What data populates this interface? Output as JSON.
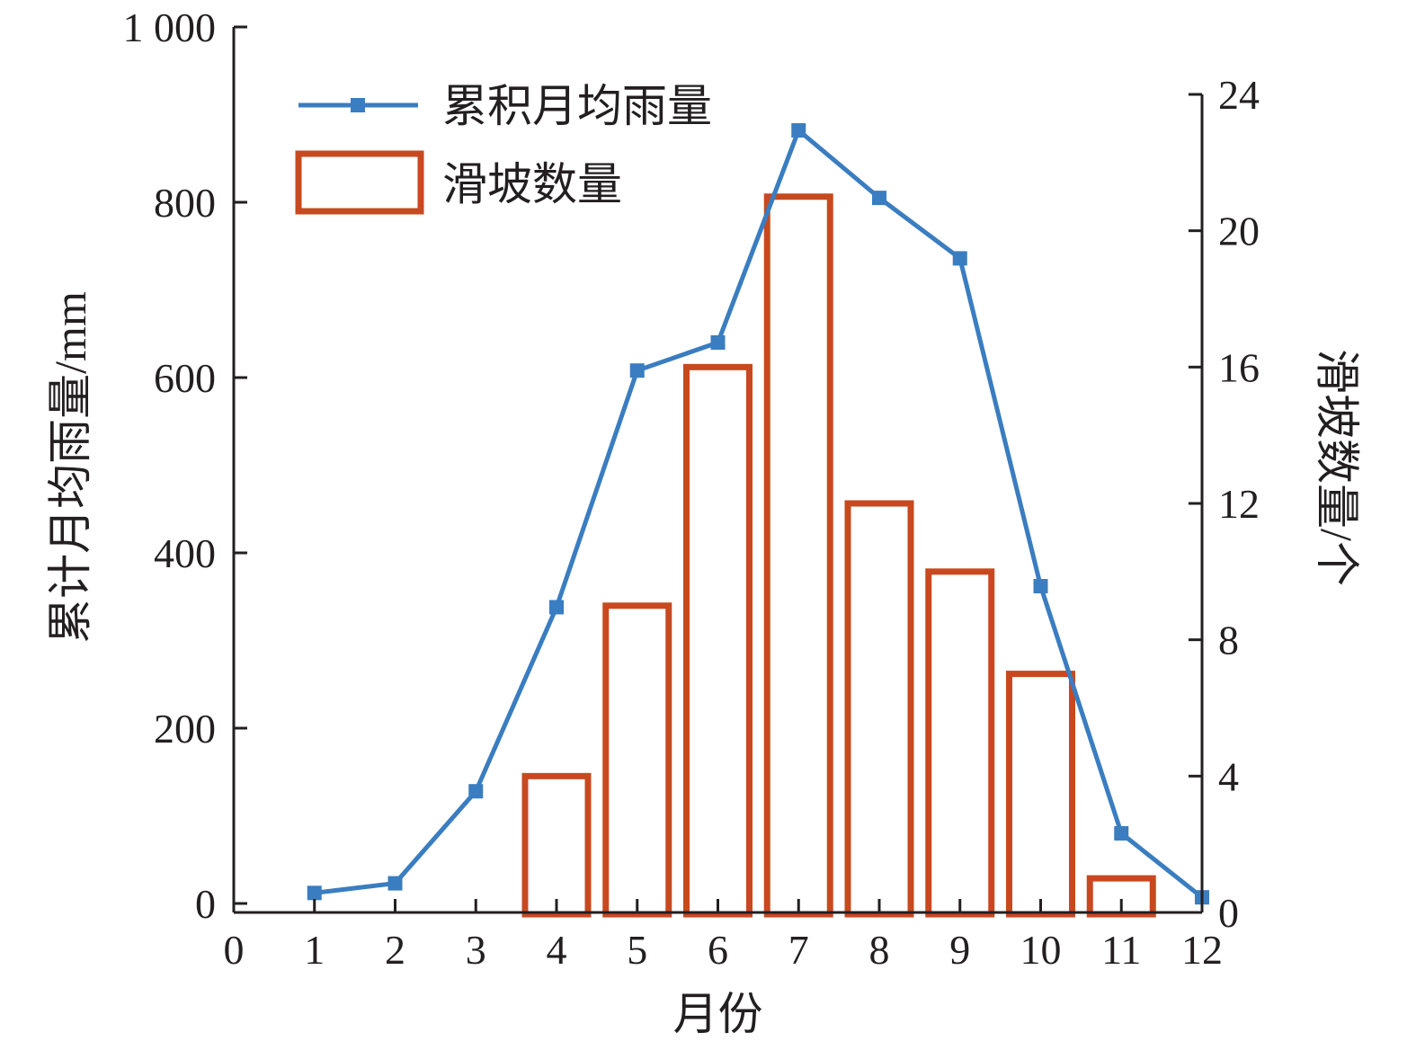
{
  "chart_data": {
    "type": "bar",
    "x": [
      1,
      2,
      3,
      4,
      5,
      6,
      7,
      8,
      9,
      10,
      11,
      12
    ],
    "xlabel": "月份",
    "xlim": [
      0,
      12
    ],
    "xticks": [
      "0",
      "1",
      "2",
      "3",
      "4",
      "5",
      "6",
      "7",
      "8",
      "9",
      "10",
      "11",
      "12"
    ],
    "left_axis": {
      "label": "累计月均雨量/mm",
      "lim": [
        0,
        1000
      ],
      "ticks": [
        "0",
        "200",
        "400",
        "600",
        "800",
        "1 000"
      ]
    },
    "right_axis": {
      "label": "滑坡数量/个",
      "lim": [
        0,
        24
      ],
      "ticks": [
        "0",
        "4",
        "8",
        "12",
        "16",
        "20",
        "24"
      ]
    },
    "series": [
      {
        "name": "累积月均雨量",
        "type": "line",
        "axis": "left",
        "color": "#3a7dc0",
        "marker": "square",
        "values": [
          12,
          23,
          128,
          338,
          608,
          640,
          882,
          805,
          736,
          362,
          80,
          7
        ]
      },
      {
        "name": "滑坡数量",
        "type": "bar",
        "axis": "right",
        "color": "#c8491f",
        "fill": "none",
        "values": [
          0,
          0,
          0,
          4,
          9,
          16,
          21,
          12,
          10,
          7,
          1,
          0
        ]
      }
    ],
    "legend": "top-left",
    "grid": false
  }
}
